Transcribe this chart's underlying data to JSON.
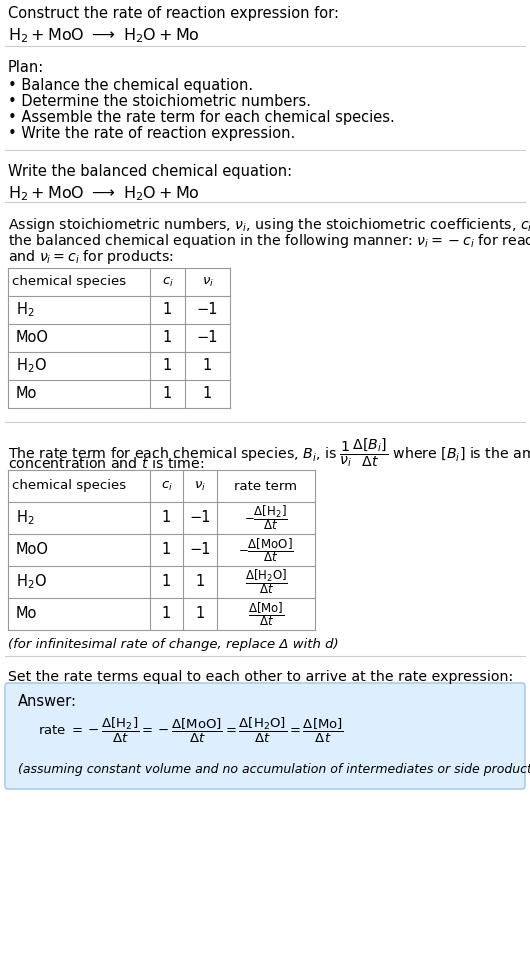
{
  "bg_color": "#ffffff",
  "text_color": "#000000",
  "answer_bg_color": "#ddeeff",
  "answer_border_color": "#aaccee",
  "separator_color": "#cccccc",
  "title_line1": "Construct the rate of reaction expression for:",
  "plan_header": "Plan:",
  "plan_items": [
    "• Balance the chemical equation.",
    "• Determine the stoichiometric numbers.",
    "• Assemble the rate term for each chemical species.",
    "• Write the rate of reaction expression."
  ],
  "section2_header": "Write the balanced chemical equation:",
  "section5_header": "Set the rate terms equal to each other to arrive at the rate expression:",
  "answer_label": "Answer:",
  "answer_disclaimer": "(assuming constant volume and no accumulation of intermediates or side products)",
  "infinitesimal_note": "(for infinitesimal rate of change, replace Δ with d)",
  "table1_rows": [
    [
      "H₂",
      "1",
      "−1"
    ],
    [
      "MoO",
      "1",
      "−1"
    ],
    [
      "H₂O",
      "1",
      "1"
    ],
    [
      "Mo",
      "1",
      "1"
    ]
  ],
  "table2_rows": [
    [
      "H₂",
      "1",
      "−1"
    ],
    [
      "MoO",
      "1",
      "−1"
    ],
    [
      "H₂O",
      "1",
      "1"
    ],
    [
      "Mo",
      "1",
      "1"
    ]
  ]
}
